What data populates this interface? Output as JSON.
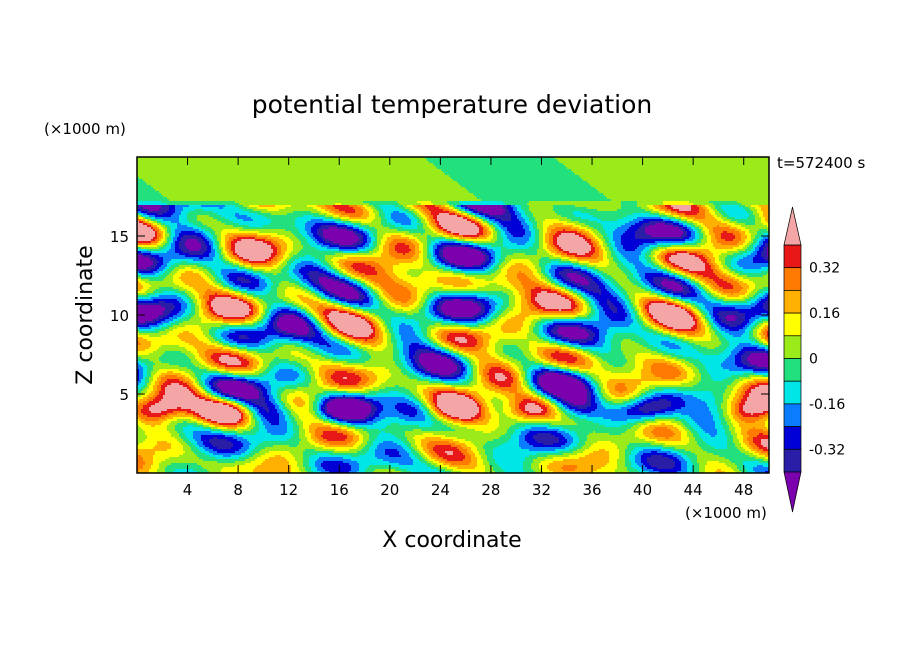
{
  "chart_data": {
    "type": "heatmap",
    "title": "potential temperature deviation",
    "xlabel": "X coordinate",
    "ylabel": "Z coordinate",
    "x_unit": "(×1000 m)",
    "y_unit": "(×1000 m)",
    "time_label": "t=572400 s",
    "xlim": [
      0,
      50
    ],
    "ylim": [
      0,
      20
    ],
    "x_ticks": [
      4,
      8,
      12,
      16,
      20,
      24,
      28,
      32,
      36,
      40,
      44,
      48
    ],
    "y_ticks": [
      5,
      10,
      15
    ],
    "colorbar": {
      "levels": [
        -0.4,
        -0.32,
        -0.24,
        -0.16,
        -0.08,
        0,
        0.08,
        0.16,
        0.24,
        0.32,
        0.4
      ],
      "labeled_ticks": [
        0.32,
        0.16,
        0,
        -0.16,
        -0.32
      ],
      "colors": [
        "#7b00ae",
        "#2a1da6",
        "#0000d6",
        "#0a7cff",
        "#00e6e6",
        "#22e07d",
        "#9bea19",
        "#ffff00",
        "#ffb000",
        "#ff7a00",
        "#e81818",
        "#f4a5a5"
      ]
    }
  }
}
